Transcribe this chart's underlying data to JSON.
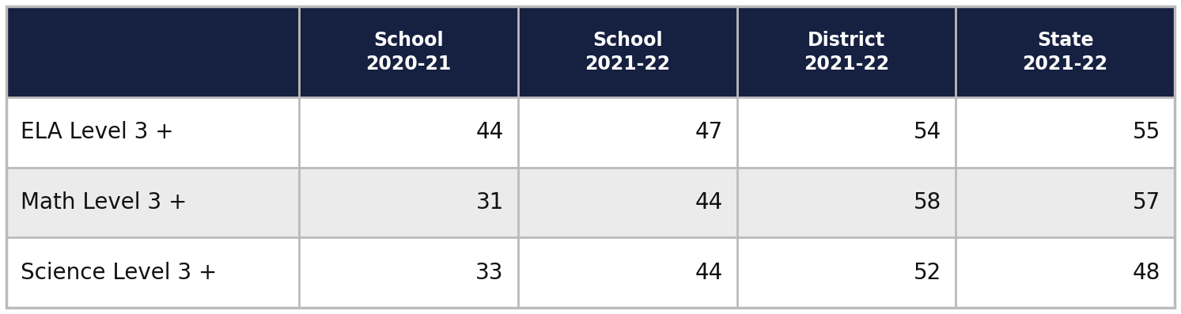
{
  "col_headers": [
    [
      "School",
      "2020-21"
    ],
    [
      "School",
      "2021-22"
    ],
    [
      "District",
      "2021-22"
    ],
    [
      "State",
      "2021-22"
    ]
  ],
  "row_labels": [
    "ELA Level 3 +",
    "Math Level 3 +",
    "Science Level 3 +"
  ],
  "values": [
    [
      44,
      47,
      54,
      55
    ],
    [
      31,
      44,
      58,
      57
    ],
    [
      33,
      44,
      52,
      48
    ]
  ],
  "header_bg": "#162040",
  "header_text_color": "#ffffff",
  "row_bg_even": "#ffffff",
  "row_bg_odd": "#ebebeb",
  "row_text_color": "#111111",
  "border_color": "#bbbbbb",
  "header_font_size": 17,
  "row_font_size": 20,
  "row_label_font_size": 20,
  "fig_width": 14.93,
  "fig_height": 3.97,
  "dpi": 100
}
